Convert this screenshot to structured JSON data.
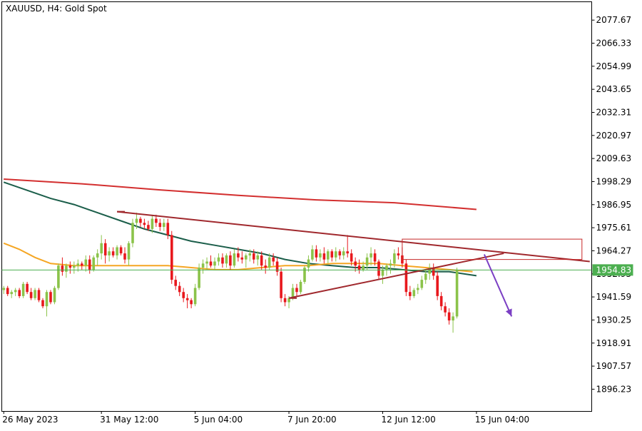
{
  "header": {
    "symbol_line": "XAUUSD, H4:  Gold Spot"
  },
  "chart_data": {
    "type": "candlestick",
    "title": "XAUUSD, H4:  Gold Spot",
    "ylim": [
      1885.5,
      2086.5
    ],
    "y_ticks": [
      "2077.67",
      "2066.33",
      "2054.99",
      "2043.65",
      "2032.31",
      "2020.97",
      "2009.63",
      "1998.29",
      "1986.95",
      "1975.61",
      "1964.27",
      "1952.93",
      "1941.59",
      "1930.25",
      "1918.91",
      "1907.57",
      "1896.23"
    ],
    "x_ticks": [
      {
        "label": "26 May 2023",
        "bar": 0
      },
      {
        "label": "31 May 12:00",
        "bar": 25
      },
      {
        "label": "5 Jun 04:00",
        "bar": 49
      },
      {
        "label": "7 Jun 20:00",
        "bar": 73
      },
      {
        "label": "12 Jun 12:00",
        "bar": 97
      },
      {
        "label": "15 Jun 04:00",
        "bar": 121
      }
    ],
    "current_price": "1954.83",
    "bars_total": 151,
    "candles": [
      [
        1945,
        1947,
        1943,
        1946
      ],
      [
        1946,
        1947,
        1942,
        1943
      ],
      [
        1943,
        1945,
        1941,
        1944
      ],
      [
        1944,
        1946,
        1942,
        1945
      ],
      [
        1945,
        1946,
        1941,
        1942
      ],
      [
        1942,
        1949,
        1941,
        1948
      ],
      [
        1948,
        1949,
        1943,
        1944
      ],
      [
        1944,
        1946,
        1940,
        1941
      ],
      [
        1941,
        1946,
        1940,
        1945
      ],
      [
        1945,
        1946,
        1939,
        1940
      ],
      [
        1940,
        1941,
        1936,
        1937
      ],
      [
        1937,
        1945,
        1932,
        1944
      ],
      [
        1944,
        1945,
        1938,
        1939
      ],
      [
        1939,
        1947,
        1938,
        1946
      ],
      [
        1946,
        1958,
        1945,
        1957
      ],
      [
        1957,
        1961,
        1952,
        1954
      ],
      [
        1954,
        1958,
        1951,
        1957
      ],
      [
        1957,
        1959,
        1953,
        1956
      ],
      [
        1956,
        1959,
        1953,
        1957
      ],
      [
        1957,
        1960,
        1954,
        1958
      ],
      [
        1958,
        1959,
        1955,
        1957
      ],
      [
        1957,
        1962,
        1954,
        1960
      ],
      [
        1960,
        1962,
        1953,
        1955
      ],
      [
        1955,
        1962,
        1954,
        1961
      ],
      [
        1961,
        1965,
        1957,
        1963
      ],
      [
        1963,
        1972,
        1960,
        1968
      ],
      [
        1968,
        1970,
        1958,
        1962
      ],
      [
        1962,
        1966,
        1959,
        1964
      ],
      [
        1964,
        1966,
        1961,
        1962
      ],
      [
        1962,
        1967,
        1960,
        1966
      ],
      [
        1966,
        1967,
        1962,
        1963
      ],
      [
        1963,
        1966,
        1958,
        1960
      ],
      [
        1960,
        1969,
        1957,
        1968
      ],
      [
        1968,
        1980,
        1966,
        1978
      ],
      [
        1978,
        1983,
        1975,
        1980
      ],
      [
        1980,
        1981,
        1976,
        1978
      ],
      [
        1978,
        1980,
        1975,
        1977
      ],
      [
        1977,
        1979,
        1974,
        1975
      ],
      [
        1975,
        1982,
        1973,
        1980
      ],
      [
        1980,
        1982,
        1976,
        1978
      ],
      [
        1978,
        1980,
        1974,
        1976
      ],
      [
        1976,
        1980,
        1974,
        1978
      ],
      [
        1978,
        1980,
        1970,
        1972
      ],
      [
        1972,
        1974,
        1948,
        1950
      ],
      [
        1950,
        1952,
        1945,
        1947
      ],
      [
        1947,
        1949,
        1942,
        1944
      ],
      [
        1944,
        1946,
        1939,
        1941
      ],
      [
        1941,
        1943,
        1936,
        1940
      ],
      [
        1940,
        1941,
        1936,
        1938
      ],
      [
        1938,
        1948,
        1937,
        1946
      ],
      [
        1946,
        1958,
        1945,
        1956
      ],
      [
        1956,
        1960,
        1953,
        1958
      ],
      [
        1958,
        1961,
        1955,
        1959
      ],
      [
        1959,
        1962,
        1956,
        1957
      ],
      [
        1957,
        1961,
        1955,
        1959
      ],
      [
        1959,
        1963,
        1957,
        1961
      ],
      [
        1961,
        1963,
        1956,
        1958
      ],
      [
        1958,
        1963,
        1956,
        1962
      ],
      [
        1962,
        1964,
        1955,
        1957
      ],
      [
        1957,
        1965,
        1956,
        1963
      ],
      [
        1963,
        1966,
        1959,
        1961
      ],
      [
        1961,
        1964,
        1958,
        1960
      ],
      [
        1960,
        1963,
        1956,
        1962
      ],
      [
        1962,
        1965,
        1959,
        1963
      ],
      [
        1963,
        1965,
        1958,
        1960
      ],
      [
        1960,
        1964,
        1957,
        1962
      ],
      [
        1962,
        1964,
        1955,
        1957
      ],
      [
        1957,
        1960,
        1953,
        1956
      ],
      [
        1956,
        1963,
        1955,
        1961
      ],
      [
        1961,
        1963,
        1957,
        1959
      ],
      [
        1959,
        1961,
        1952,
        1954
      ],
      [
        1954,
        1956,
        1939,
        1941
      ],
      [
        1941,
        1943,
        1937,
        1939
      ],
      [
        1939,
        1942,
        1936,
        1941
      ],
      [
        1941,
        1948,
        1940,
        1946
      ],
      [
        1946,
        1948,
        1942,
        1944
      ],
      [
        1944,
        1950,
        1943,
        1949
      ],
      [
        1949,
        1957,
        1948,
        1956
      ],
      [
        1956,
        1962,
        1954,
        1960
      ],
      [
        1960,
        1967,
        1959,
        1965
      ],
      [
        1965,
        1967,
        1959,
        1961
      ],
      [
        1961,
        1965,
        1959,
        1963
      ],
      [
        1963,
        1966,
        1958,
        1960
      ],
      [
        1960,
        1965,
        1958,
        1964
      ],
      [
        1964,
        1965,
        1959,
        1961
      ],
      [
        1961,
        1966,
        1959,
        1964
      ],
      [
        1964,
        1965,
        1960,
        1962
      ],
      [
        1962,
        1966,
        1960,
        1964
      ],
      [
        1964,
        1972,
        1961,
        1963
      ],
      [
        1963,
        1965,
        1957,
        1959
      ],
      [
        1959,
        1961,
        1954,
        1957
      ],
      [
        1957,
        1960,
        1953,
        1955
      ],
      [
        1955,
        1959,
        1954,
        1957
      ],
      [
        1957,
        1963,
        1955,
        1961
      ],
      [
        1961,
        1966,
        1957,
        1963
      ],
      [
        1963,
        1965,
        1957,
        1959
      ],
      [
        1959,
        1960,
        1950,
        1952
      ],
      [
        1952,
        1957,
        1948,
        1955
      ],
      [
        1955,
        1958,
        1952,
        1957
      ],
      [
        1957,
        1960,
        1953,
        1958
      ],
      [
        1958,
        1965,
        1956,
        1963
      ],
      [
        1963,
        1966,
        1960,
        1962
      ],
      [
        1962,
        1966,
        1956,
        1958
      ],
      [
        1958,
        1960,
        1942,
        1944
      ],
      [
        1944,
        1947,
        1940,
        1942
      ],
      [
        1942,
        1946,
        1941,
        1945
      ],
      [
        1945,
        1948,
        1943,
        1946
      ],
      [
        1946,
        1952,
        1945,
        1950
      ],
      [
        1950,
        1955,
        1948,
        1953
      ],
      [
        1953,
        1958,
        1950,
        1956
      ],
      [
        1956,
        1958,
        1950,
        1952
      ],
      [
        1952,
        1954,
        1940,
        1942
      ],
      [
        1942,
        1944,
        1935,
        1937
      ],
      [
        1937,
        1939,
        1932,
        1934
      ],
      [
        1934,
        1936,
        1928,
        1930
      ],
      [
        1930,
        1934,
        1924,
        1932
      ],
      [
        1932,
        1956,
        1931,
        1955
      ]
    ],
    "ma_red": [
      [
        0,
        1999.5
      ],
      [
        20,
        1997.2
      ],
      [
        40,
        1994.2
      ],
      [
        60,
        1991.5
      ],
      [
        80,
        1989.3
      ],
      [
        100,
        1987.9
      ],
      [
        121,
        1984.6
      ]
    ],
    "ma_teal": [
      [
        0,
        1998
      ],
      [
        6,
        1994
      ],
      [
        12,
        1990
      ],
      [
        18,
        1987
      ],
      [
        24,
        1983
      ],
      [
        30,
        1979
      ],
      [
        36,
        1975
      ],
      [
        42,
        1972
      ],
      [
        48,
        1969
      ],
      [
        54,
        1967
      ],
      [
        60,
        1965
      ],
      [
        66,
        1963
      ],
      [
        72,
        1960
      ],
      [
        78,
        1958
      ],
      [
        84,
        1957
      ],
      [
        90,
        1956
      ],
      [
        96,
        1956
      ],
      [
        102,
        1955
      ],
      [
        108,
        1954
      ],
      [
        114,
        1954
      ],
      [
        121,
        1952
      ]
    ],
    "ma_orange": [
      [
        0,
        1968
      ],
      [
        4,
        1965
      ],
      [
        8,
        1961
      ],
      [
        12,
        1958
      ],
      [
        18,
        1957
      ],
      [
        24,
        1957
      ],
      [
        30,
        1957
      ],
      [
        36,
        1957
      ],
      [
        42,
        1957
      ],
      [
        48,
        1956
      ],
      [
        54,
        1955
      ],
      [
        60,
        1955
      ],
      [
        66,
        1956
      ],
      [
        72,
        1957
      ],
      [
        78,
        1957
      ],
      [
        84,
        1958
      ],
      [
        90,
        1958
      ],
      [
        96,
        1958
      ],
      [
        102,
        1957
      ],
      [
        108,
        1956
      ],
      [
        114,
        1955
      ],
      [
        120,
        1954
      ]
    ],
    "trendline_upper": [
      [
        29,
        1983.5
      ],
      [
        150,
        1959
      ]
    ],
    "trendline_lower": [
      [
        73,
        1941
      ],
      [
        128,
        1963
      ]
    ],
    "zone_rect": {
      "x0": 102,
      "x1": 148,
      "y_top": 1970,
      "y_bot": 1960
    },
    "forecast_arrow": [
      [
        123,
        1962.5
      ],
      [
        130,
        1932
      ]
    ],
    "colors": {
      "bull": "#8bc34a",
      "bear": "#e8181d",
      "ma_red": "#d32f2f",
      "ma_teal": "#1b5e4a",
      "ma_orange": "#f5a623",
      "trendline": "#a0282d",
      "zone": "#c62828",
      "arrow": "#7b3fc4",
      "price_line": "#4caf50",
      "price_badge": "#4caf50"
    }
  }
}
